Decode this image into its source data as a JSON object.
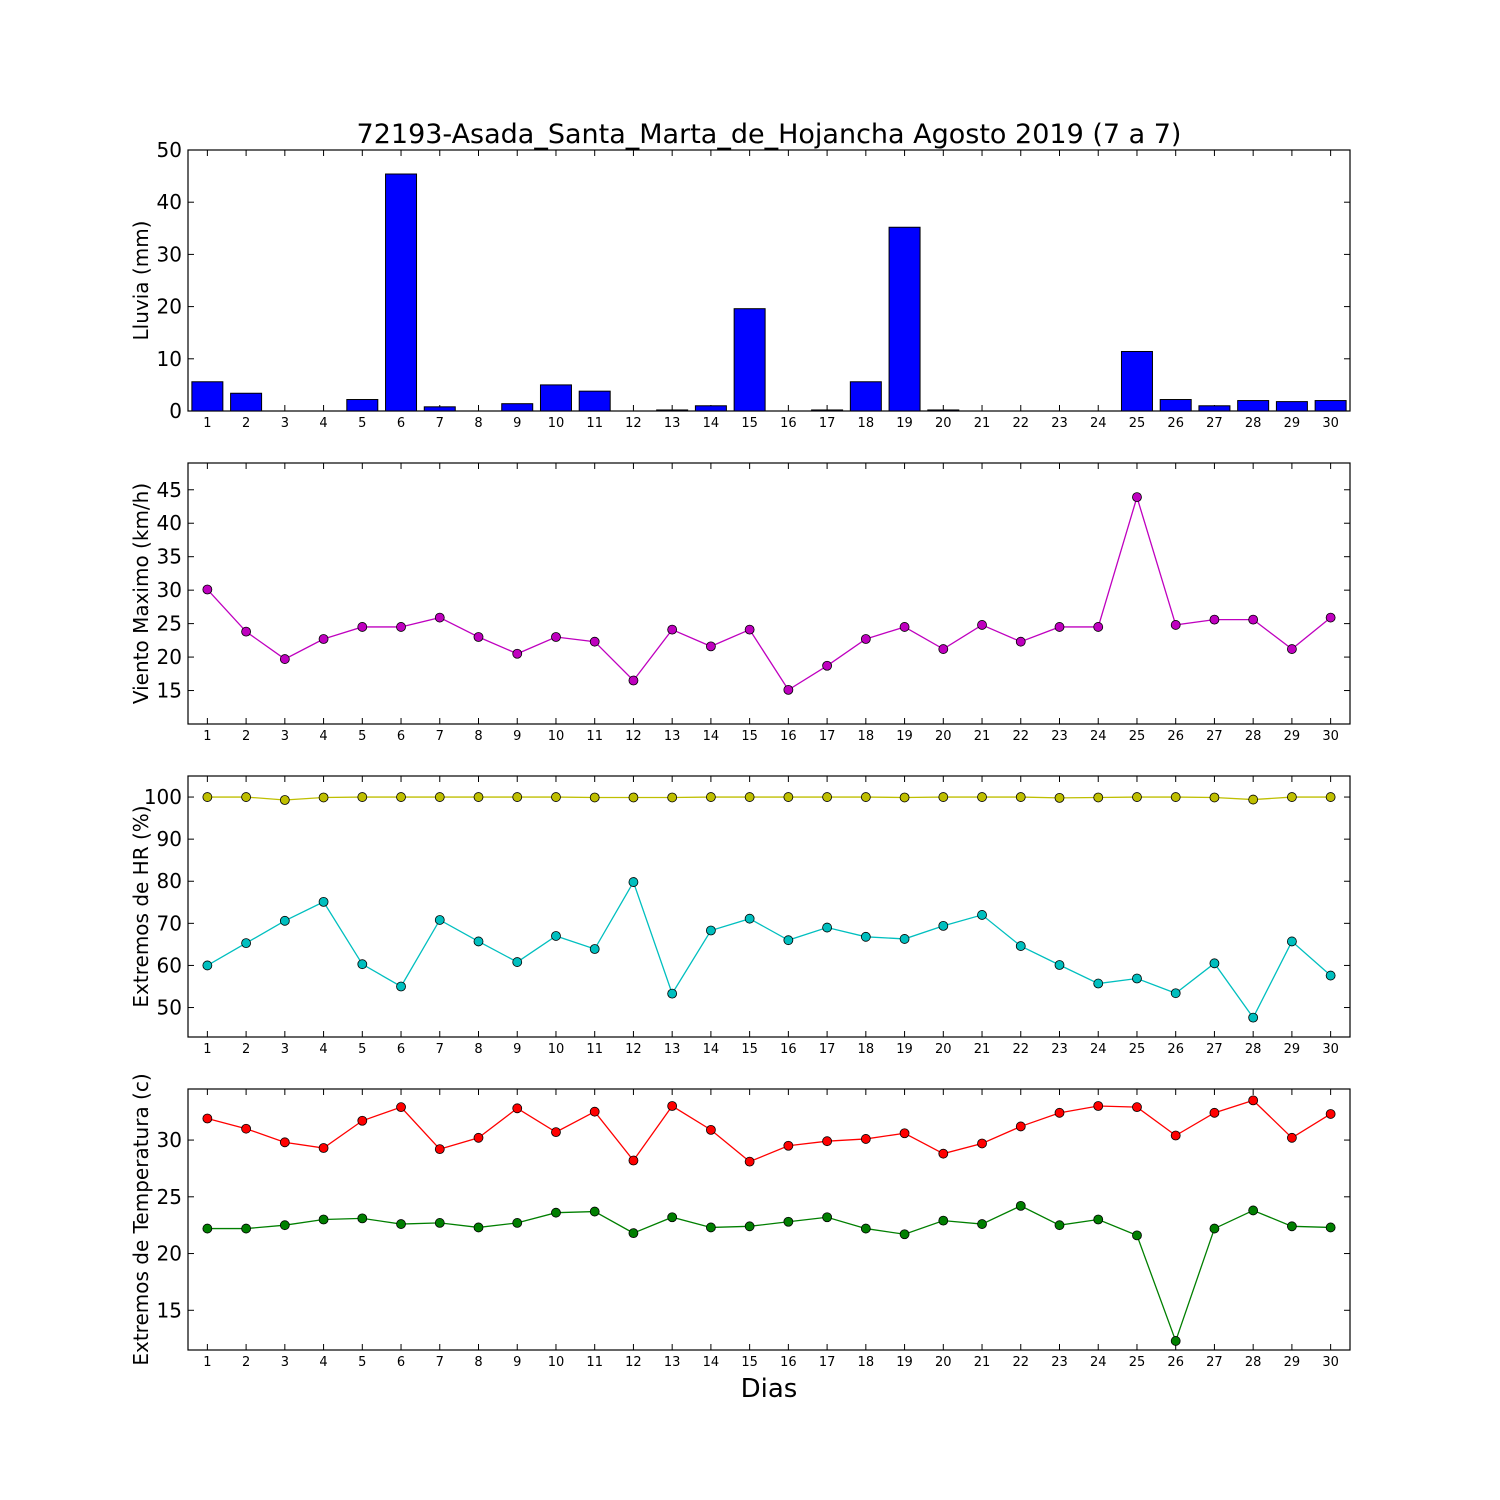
{
  "chart_data": [
    {
      "type": "bar",
      "title": "72193-Asada_Santa_Marta_de_Hojancha Agosto 2019  (7 a 7)",
      "ylabel": "Lluvia (mm)",
      "ylim": [
        0,
        50
      ],
      "yticks": [
        0,
        10,
        20,
        30,
        40,
        50
      ],
      "categories": [
        "1",
        "2",
        "3",
        "4",
        "5",
        "6",
        "7",
        "8",
        "9",
        "10",
        "11",
        "12",
        "13",
        "14",
        "15",
        "16",
        "17",
        "18",
        "19",
        "20",
        "21",
        "22",
        "23",
        "24",
        "25",
        "26",
        "27",
        "28",
        "29",
        "30"
      ],
      "values": [
        5.6,
        3.4,
        0,
        0,
        2.2,
        45.4,
        0.8,
        0,
        1.4,
        5.0,
        3.8,
        0,
        0.2,
        1.0,
        19.6,
        0,
        0.2,
        5.6,
        35.2,
        0.2,
        0,
        0,
        0,
        0,
        11.4,
        2.2,
        1.0,
        2.0,
        1.8,
        2.0
      ],
      "colors": {
        "bar": "#0000ff"
      }
    },
    {
      "type": "line",
      "ylabel": "Viento Maximo (km/h)",
      "ylim": [
        10,
        49
      ],
      "yticks": [
        15,
        20,
        25,
        30,
        35,
        40,
        45
      ],
      "categories": [
        "1",
        "2",
        "3",
        "4",
        "5",
        "6",
        "7",
        "8",
        "9",
        "10",
        "11",
        "12",
        "13",
        "14",
        "15",
        "16",
        "17",
        "18",
        "19",
        "20",
        "21",
        "22",
        "23",
        "24",
        "25",
        "26",
        "27",
        "28",
        "29",
        "30"
      ],
      "series": [
        {
          "values": [
            30.1,
            23.8,
            19.7,
            22.7,
            24.5,
            24.5,
            25.9,
            23.0,
            20.5,
            23.0,
            22.3,
            16.5,
            24.1,
            21.6,
            24.1,
            15.1,
            18.7,
            22.7,
            24.5,
            21.2,
            24.8,
            22.3,
            24.5,
            24.5,
            43.9,
            24.8,
            25.6,
            25.6,
            21.2,
            25.9
          ],
          "color": "#bf00bf"
        }
      ]
    },
    {
      "type": "line",
      "ylabel": "Extremos de HR (%)",
      "ylim": [
        43,
        105
      ],
      "yticks": [
        50,
        60,
        70,
        80,
        90,
        100
      ],
      "categories": [
        "1",
        "2",
        "3",
        "4",
        "5",
        "6",
        "7",
        "8",
        "9",
        "10",
        "11",
        "12",
        "13",
        "14",
        "15",
        "16",
        "17",
        "18",
        "19",
        "20",
        "21",
        "22",
        "23",
        "24",
        "25",
        "26",
        "27",
        "28",
        "29",
        "30"
      ],
      "series": [
        {
          "values": [
            100,
            100,
            99.3,
            99.9,
            100,
            100,
            100,
            100,
            100,
            100,
            99.9,
            99.9,
            99.9,
            100,
            100,
            100,
            100,
            100,
            99.9,
            100,
            100,
            100,
            99.8,
            99.9,
            100,
            100,
            99.9,
            99.4,
            100,
            100
          ],
          "color": "#bfbf00"
        },
        {
          "values": [
            60.0,
            65.3,
            70.6,
            75.1,
            60.3,
            55.0,
            70.8,
            65.7,
            60.8,
            67.0,
            63.9,
            79.8,
            53.3,
            68.3,
            71.1,
            66.0,
            69.0,
            66.8,
            66.3,
            69.4,
            72.0,
            64.6,
            60.1,
            55.7,
            56.9,
            53.4,
            60.5,
            47.6,
            65.7,
            57.6
          ],
          "color": "#00bfbf"
        }
      ]
    },
    {
      "type": "line",
      "ylabel": "Extremos de Temperatura (c)",
      "xlabel": "Dias",
      "ylim": [
        11.5,
        34.5
      ],
      "yticks": [
        15,
        20,
        25,
        30
      ],
      "categories": [
        "1",
        "2",
        "3",
        "4",
        "5",
        "6",
        "7",
        "8",
        "9",
        "10",
        "11",
        "12",
        "13",
        "14",
        "15",
        "16",
        "17",
        "18",
        "19",
        "20",
        "21",
        "22",
        "23",
        "24",
        "25",
        "26",
        "27",
        "28",
        "29",
        "30"
      ],
      "series": [
        {
          "values": [
            31.9,
            31.0,
            29.8,
            29.3,
            31.7,
            32.9,
            29.2,
            30.2,
            32.8,
            30.7,
            32.5,
            28.2,
            33.0,
            30.9,
            28.1,
            29.5,
            29.9,
            30.1,
            30.6,
            28.8,
            29.7,
            31.2,
            32.4,
            33.0,
            32.9,
            30.4,
            32.4,
            33.5,
            30.2,
            32.3
          ],
          "color": "#ff0000"
        },
        {
          "values": [
            22.2,
            22.2,
            22.5,
            23.0,
            23.1,
            22.6,
            22.7,
            22.3,
            22.7,
            23.6,
            23.7,
            21.8,
            23.2,
            22.3,
            22.4,
            22.8,
            23.2,
            22.2,
            21.7,
            22.9,
            22.6,
            24.2,
            22.5,
            23.0,
            21.6,
            12.3,
            22.2,
            23.8,
            22.4,
            22.3
          ],
          "color": "#007f00"
        }
      ]
    }
  ]
}
